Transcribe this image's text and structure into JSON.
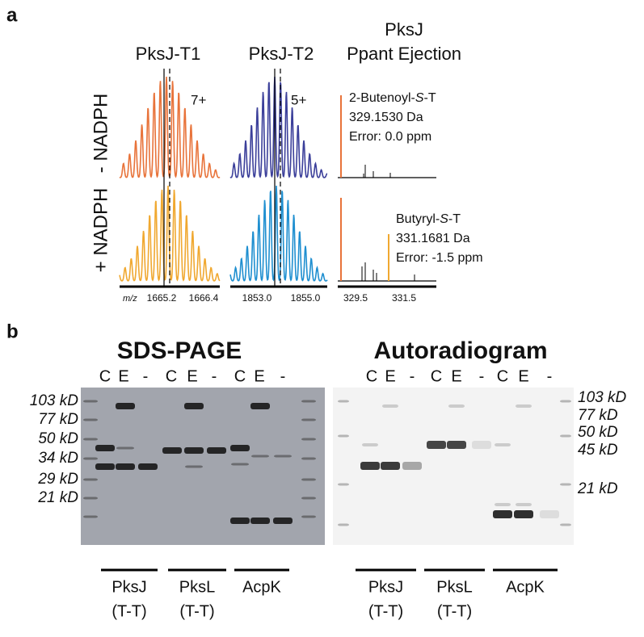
{
  "panel_a": {
    "label": "a",
    "col_titles": [
      "PksJ-T1",
      "PksJ-T2"
    ],
    "ppant_title": [
      "PksJ",
      "Ppant Ejection"
    ],
    "rows": [
      "- NADPH",
      "+ NADPH"
    ],
    "charges": [
      "7+",
      "5+"
    ],
    "top_annotation": {
      "name": [
        "2-Butenoyl-",
        "S",
        "-T"
      ],
      "mass": "329.1530 Da",
      "error": "Error: 0.0 ppm"
    },
    "bottom_annotation": {
      "name": [
        "Butyryl-",
        "S",
        "-T"
      ],
      "mass": "331.1681 Da",
      "error": "Error: -1.5 ppm"
    },
    "axis": {
      "unit": "m/z",
      "ticks": [
        "1665.2",
        "1666.4",
        "1853.0",
        "1855.0",
        "329.5",
        "331.5"
      ]
    }
  },
  "panel_b": {
    "label": "b",
    "gels": [
      "SDS-PAGE",
      "Autoradiogram"
    ],
    "lanes": [
      "C",
      "E",
      "-",
      "C",
      "E",
      "-",
      "C",
      "E",
      "-"
    ],
    "left_markers": [
      "103 kD",
      "77 kD",
      "50 kD",
      "34 kD",
      "29 kD",
      "21 kD"
    ],
    "right_markers": [
      "103 kD",
      "77 kD",
      "50 kD",
      "45 kD",
      "21 kD"
    ],
    "groups": [
      {
        "name": "PksJ",
        "sub": "(T-T)"
      },
      {
        "name": "PksL",
        "sub": "(T-T)"
      },
      {
        "name": "AcpK"
      }
    ]
  }
}
